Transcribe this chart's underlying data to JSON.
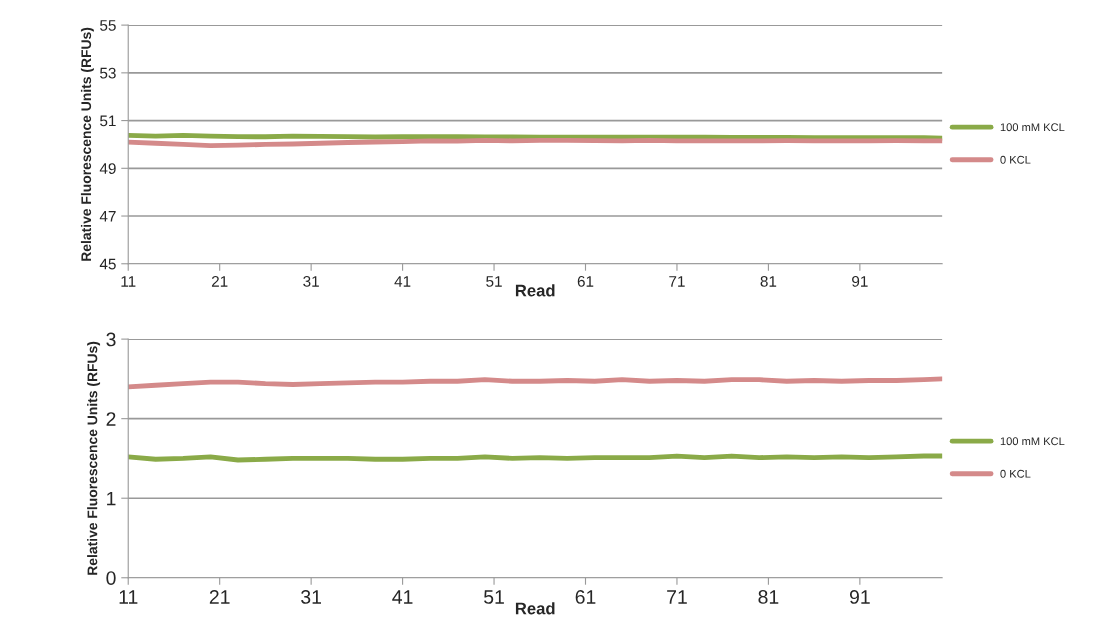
{
  "chart_data": [
    {
      "type": "line",
      "xlabel": "Read",
      "ylabel": "Relative Fluorescence Units (RFUs)",
      "x": [
        11,
        14,
        17,
        20,
        23,
        26,
        29,
        32,
        35,
        38,
        41,
        44,
        47,
        50,
        53,
        56,
        59,
        62,
        65,
        68,
        71,
        74,
        77,
        80,
        83,
        86,
        89,
        92,
        95,
        98,
        100
      ],
      "xlim": [
        11,
        100
      ],
      "xticks": [
        11,
        21,
        31,
        41,
        51,
        61,
        71,
        81,
        91
      ],
      "ylim": [
        45,
        55
      ],
      "yticks": [
        45,
        47,
        49,
        51,
        53,
        55
      ],
      "grid": "y",
      "legend": "right",
      "series": [
        {
          "name": "100 mM KCL",
          "color": "#8aaa48",
          "values": [
            50.38,
            50.35,
            50.38,
            50.35,
            50.33,
            50.32,
            50.35,
            50.34,
            50.33,
            50.31,
            50.32,
            50.33,
            50.32,
            50.31,
            50.31,
            50.3,
            50.3,
            50.3,
            50.3,
            50.3,
            50.3,
            50.3,
            50.29,
            50.29,
            50.29,
            50.28,
            50.28,
            50.28,
            50.28,
            50.28,
            50.26
          ]
        },
        {
          "name": "0 KCL",
          "color": "#d48a8a",
          "values": [
            50.1,
            50.05,
            50.0,
            49.95,
            49.97,
            50.0,
            50.02,
            50.05,
            50.08,
            50.1,
            50.12,
            50.15,
            50.14,
            50.17,
            50.15,
            50.17,
            50.17,
            50.16,
            50.15,
            50.17,
            50.15,
            50.15,
            50.15,
            50.15,
            50.16,
            50.15,
            50.15,
            50.15,
            50.16,
            50.15,
            50.15
          ]
        }
      ]
    },
    {
      "type": "line",
      "xlabel": "Read",
      "ylabel": "Relative Fluorescence Units (RFUs)",
      "x": [
        11,
        14,
        17,
        20,
        23,
        26,
        29,
        32,
        35,
        38,
        41,
        44,
        47,
        50,
        53,
        56,
        59,
        62,
        65,
        68,
        71,
        74,
        77,
        80,
        83,
        86,
        89,
        92,
        95,
        98,
        100
      ],
      "xlim": [
        11,
        100
      ],
      "xticks": [
        11,
        21,
        31,
        41,
        51,
        61,
        71,
        81,
        91
      ],
      "ylim": [
        0,
        3
      ],
      "yticks": [
        0,
        1,
        2,
        3
      ],
      "grid": "y",
      "legend": "right",
      "series": [
        {
          "name": "100 mM KCL",
          "color": "#8aaa48",
          "values": [
            1.52,
            1.49,
            1.5,
            1.52,
            1.48,
            1.49,
            1.5,
            1.5,
            1.5,
            1.49,
            1.49,
            1.5,
            1.5,
            1.52,
            1.5,
            1.51,
            1.5,
            1.51,
            1.51,
            1.51,
            1.53,
            1.51,
            1.53,
            1.51,
            1.52,
            1.51,
            1.52,
            1.51,
            1.52,
            1.53,
            1.53
          ]
        },
        {
          "name": "0 KCL",
          "color": "#d48a8a",
          "values": [
            2.4,
            2.42,
            2.44,
            2.46,
            2.46,
            2.44,
            2.43,
            2.44,
            2.45,
            2.46,
            2.46,
            2.47,
            2.47,
            2.49,
            2.47,
            2.47,
            2.48,
            2.47,
            2.49,
            2.47,
            2.48,
            2.47,
            2.49,
            2.49,
            2.47,
            2.48,
            2.47,
            2.48,
            2.48,
            2.49,
            2.5
          ]
        }
      ]
    }
  ]
}
